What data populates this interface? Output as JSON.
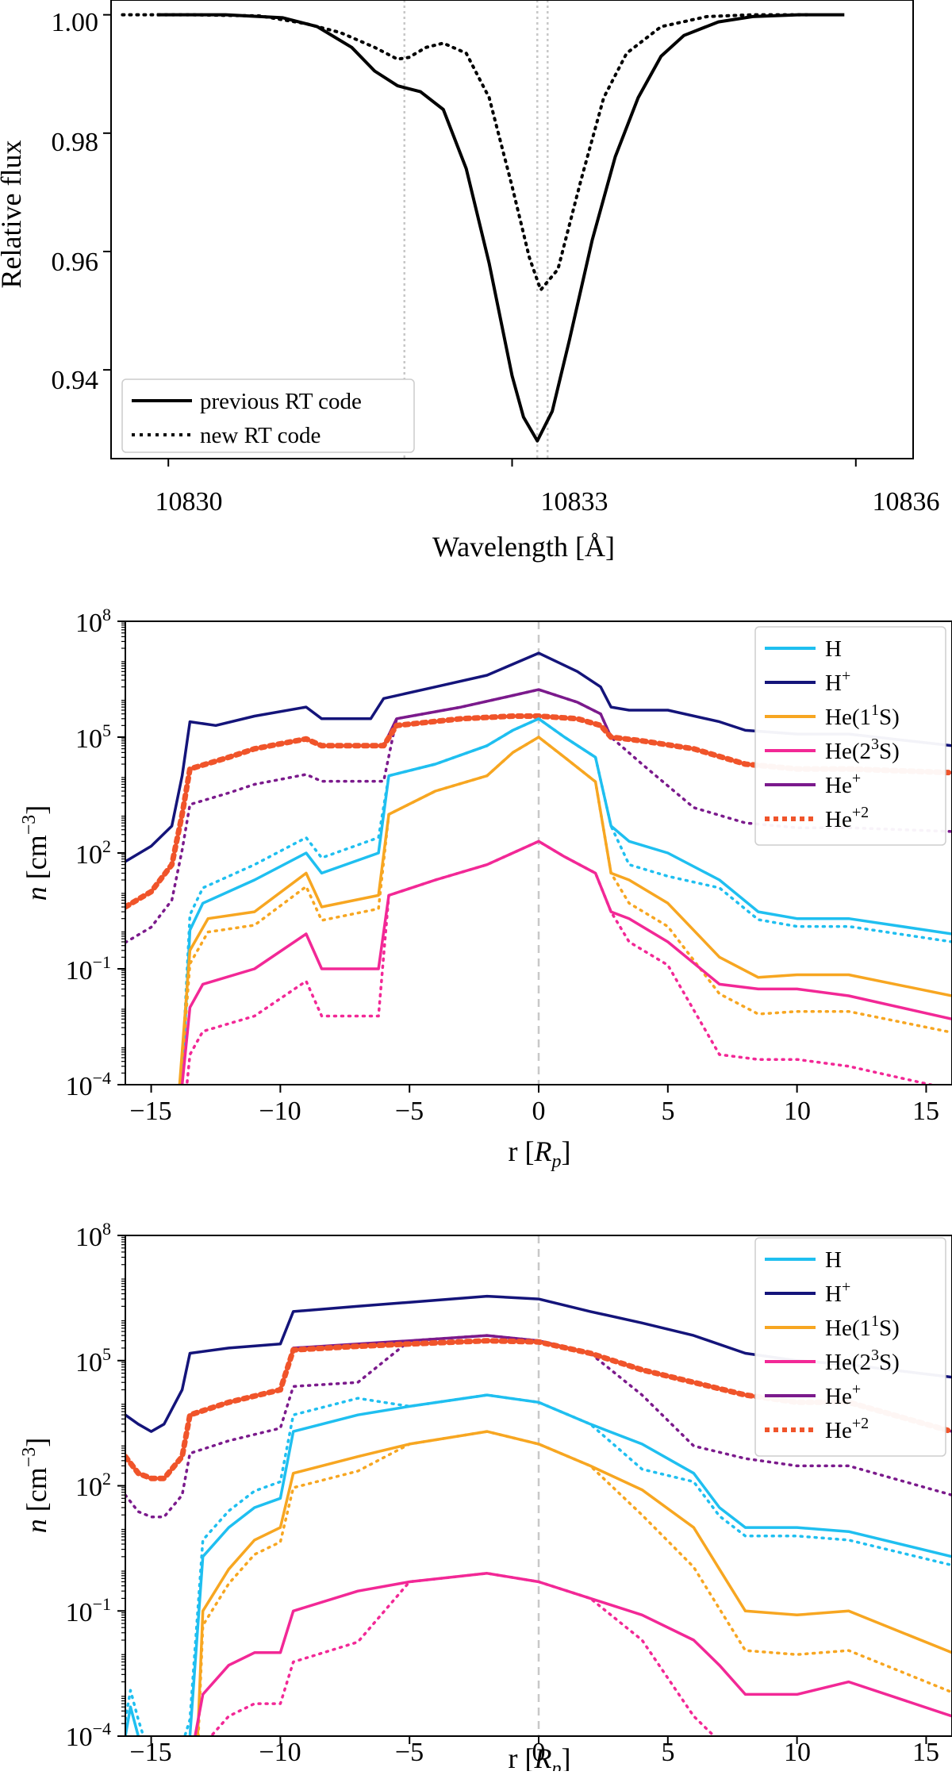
{
  "chart_data": [
    {
      "type": "line",
      "xlabel": "Wavelength [Å]",
      "ylabel": "Relative flux",
      "xlim": [
        10829.5,
        10836.5
      ],
      "ylim": [
        0.925,
        1.0025
      ],
      "xticks": [
        "10830",
        "10833",
        "10836"
      ],
      "yticks": [
        "0.94",
        "0.96",
        "0.98",
        "1.00"
      ],
      "grid": false,
      "legend": "bottom-left",
      "reference_lines_x": [
        10832.06,
        10833.22,
        10833.31
      ],
      "series": [
        {
          "name": "previous RT code",
          "style": "solid",
          "color": "#000000",
          "x": [
            10829.9,
            10830.5,
            10831.0,
            10831.3,
            10831.6,
            10831.8,
            10832.0,
            10832.2,
            10832.4,
            10832.6,
            10832.8,
            10833.0,
            10833.1,
            10833.22,
            10833.35,
            10833.5,
            10833.7,
            10833.9,
            10834.1,
            10834.3,
            10834.5,
            10834.8,
            10835.1,
            10835.5,
            10835.9
          ],
          "values": [
            1.0,
            1.0,
            0.9995,
            0.998,
            0.9945,
            0.9905,
            0.988,
            0.987,
            0.984,
            0.974,
            0.958,
            0.939,
            0.932,
            0.928,
            0.933,
            0.945,
            0.962,
            0.976,
            0.986,
            0.993,
            0.9965,
            0.9988,
            0.9997,
            1.0,
            1.0
          ]
        },
        {
          "name": "new RT code",
          "style": "dotted",
          "color": "#000000",
          "x": [
            10829.6,
            10830.2,
            10830.8,
            10831.2,
            10831.5,
            10831.8,
            10832.0,
            10832.1,
            10832.25,
            10832.4,
            10832.6,
            10832.8,
            10833.0,
            10833.15,
            10833.25,
            10833.4,
            10833.6,
            10833.8,
            10834.0,
            10834.3,
            10834.7,
            10835.1,
            10835.6
          ],
          "values": [
            1.0,
            1.0,
            0.9998,
            0.9985,
            0.997,
            0.9945,
            0.9925,
            0.9928,
            0.9945,
            0.9952,
            0.9935,
            0.986,
            0.971,
            0.959,
            0.9535,
            0.957,
            0.972,
            0.986,
            0.9935,
            0.998,
            0.9997,
            1.0,
            1.0
          ]
        }
      ]
    },
    {
      "type": "line",
      "xlabel": "r [Rp]",
      "ylabel": "n [cm⁻³]",
      "ylog": true,
      "xlim": [
        -16,
        16
      ],
      "ylim": [
        0.0001,
        100000000
      ],
      "xticks": [
        "−15",
        "−10",
        "−5",
        "0",
        "5",
        "10",
        "15"
      ],
      "yticks": [
        "10⁻⁴",
        "10⁻¹",
        "10²",
        "10⁵",
        "10⁸"
      ],
      "grid": false,
      "legend": "top-right",
      "reference_lines_x": [
        0
      ],
      "series": [
        {
          "name": "H+",
          "color": "#14147a",
          "style": "solid",
          "x": [
            -16,
            -15,
            -14.2,
            -13.8,
            -13.5,
            -12.5,
            -11,
            -9,
            -8.4,
            -6.5,
            -6,
            -4,
            -2,
            0,
            1.5,
            2.4,
            2.8,
            3.5,
            5,
            7,
            8,
            10,
            12,
            16
          ],
          "values": [
            60.0,
            150.0,
            500.0,
            10000.0,
            250000.0,
            200000.0,
            350000.0,
            600000.0,
            300000.0,
            300000.0,
            1000000.0,
            2000000.0,
            4000000.0,
            15000000.0,
            5000000.0,
            2000000.0,
            600000.0,
            500000.0,
            500000.0,
            250000.0,
            150000.0,
            120000.0,
            120000.0,
            60000.0
          ]
        },
        {
          "name": "He+",
          "color": "#7b1a8c",
          "style": "solid",
          "x": [
            -16,
            -15,
            -14.2,
            -13.8,
            -13.5,
            -12,
            -11,
            -9,
            -8.4,
            -6,
            -5.5,
            -3,
            -1,
            0,
            1.5,
            2.4,
            2.8,
            4,
            6,
            8,
            10,
            12,
            16
          ],
          "values": [
            4,
            10.0,
            50.0,
            1000.0,
            15000.0,
            30000.0,
            50000.0,
            90000.0,
            60000.0,
            60000.0,
            300000.0,
            600000.0,
            1200000.0,
            1700000.0,
            800000.0,
            400000.0,
            100000.0,
            80000.0,
            50000.0,
            20000.0,
            15000.0,
            15000.0,
            12000.0
          ]
        },
        {
          "name": "He+2",
          "color": "#f0542a",
          "style": "dotted",
          "x": [
            -16,
            -15,
            -14.2,
            -13.8,
            -13.5,
            -12,
            -11,
            -9,
            -8.4,
            -6,
            -5.5,
            -3,
            -1,
            0,
            1.5,
            2.4,
            2.8,
            4,
            6,
            8,
            10,
            12,
            16
          ],
          "values": [
            4,
            10.0,
            50.0,
            1000.0,
            15000.0,
            30000.0,
            50000.0,
            90000.0,
            60000.0,
            60000.0,
            200000.0,
            300000.0,
            350000.0,
            350000.0,
            300000.0,
            200000.0,
            100000.0,
            80000.0,
            50000.0,
            20000.0,
            15000.0,
            15000.0,
            12000.0
          ]
        },
        {
          "name": "H",
          "color": "#1fbff0",
          "style": "solid",
          "x": [
            -13.8,
            -13.5,
            -13,
            -11,
            -9,
            -8.4,
            -6.2,
            -5.8,
            -4,
            -2,
            -1,
            0,
            1,
            2.2,
            2.8,
            3.5,
            5,
            7,
            8.5,
            10,
            12,
            16
          ],
          "values": [
            0.0001,
            1,
            5,
            20.0,
            100.0,
            30.0,
            100.0,
            10000.0,
            20000.0,
            60000.0,
            150000.0,
            300000.0,
            100000.0,
            30000.0,
            500.0,
            200.0,
            100.0,
            20.0,
            3,
            2,
            2,
            0.8
          ]
        },
        {
          "name": "He(1¹S)",
          "color": "#f7a621",
          "style": "solid",
          "x": [
            -13.9,
            -13.5,
            -12.8,
            -11,
            -9,
            -8.4,
            -6.2,
            -5.8,
            -4,
            -2,
            -1,
            0,
            1,
            2.2,
            2.8,
            3.5,
            5,
            7,
            8.5,
            10,
            12,
            16
          ],
          "values": [
            0.0001,
            0.3,
            2,
            3,
            30.0,
            4,
            8,
            1000.0,
            4000.0,
            10000.0,
            40000.0,
            100000.0,
            30000.0,
            7000.0,
            30.0,
            20.0,
            5,
            0.2,
            0.06,
            0.07,
            0.07,
            0.02
          ]
        },
        {
          "name": "He(2³S)",
          "color": "#f22896",
          "style": "solid",
          "x": [
            -13.8,
            -13.5,
            -13,
            -11,
            -9,
            -8.4,
            -6.2,
            -5.8,
            -4,
            -2,
            -1,
            0,
            1,
            2.2,
            2.8,
            3.5,
            5,
            7,
            8.5,
            10,
            12,
            16
          ],
          "values": [
            0.0001,
            0.01,
            0.04,
            0.1,
            0.8,
            0.1,
            0.1,
            8,
            20.0,
            50.0,
            100.0,
            200.0,
            80.0,
            30.0,
            3,
            2,
            0.5,
            0.04,
            0.03,
            0.03,
            0.02,
            0.005
          ]
        }
      ]
    },
    {
      "type": "line",
      "xlabel": "r [Rp]",
      "ylabel": "n [cm⁻³]",
      "ylog": true,
      "xlim": [
        -16,
        16
      ],
      "ylim": [
        0.0001,
        100000000
      ],
      "xticks": [
        "−15",
        "−10",
        "−5",
        "0",
        "5",
        "10",
        "15"
      ],
      "yticks": [
        "10⁻⁴",
        "10⁻¹",
        "10²",
        "10⁵",
        "10⁸"
      ],
      "grid": false,
      "legend": "top-right",
      "reference_lines_x": [
        0
      ],
      "series": [
        {
          "name": "H+",
          "color": "#14147a",
          "style": "solid",
          "x": [
            -16,
            -15.5,
            -15,
            -14.5,
            -13.8,
            -13.5,
            -12,
            -10,
            -9.5,
            -7,
            -5,
            -2,
            0,
            2,
            4,
            6,
            8,
            10,
            12,
            16
          ],
          "values": [
            5000.0,
            3000.0,
            2000.0,
            3000.0,
            20000.0,
            150000.0,
            200000.0,
            250000.0,
            1500000.0,
            2000000.0,
            2500000.0,
            3500000.0,
            3000000.0,
            1500000.0,
            800000.0,
            400000.0,
            150000.0,
            100000.0,
            80000.0,
            40000.0
          ]
        },
        {
          "name": "He+",
          "color": "#7b1a8c",
          "style": "solid",
          "x": [
            -16,
            -15.5,
            -15,
            -14.5,
            -13.8,
            -13.5,
            -12,
            -10,
            -9.5,
            -7,
            -5,
            -2,
            0,
            2,
            4,
            6,
            8,
            10,
            12,
            16
          ],
          "values": [
            500.0,
            200.0,
            150.0,
            150.0,
            500.0,
            5000.0,
            10000.0,
            20000.0,
            200000.0,
            250000.0,
            300000.0,
            400000.0,
            300000.0,
            150000.0,
            60000.0,
            30000.0,
            15000.0,
            10000.0,
            10000.0,
            2000.0
          ]
        },
        {
          "name": "He+2",
          "color": "#f0542a",
          "style": "dotted",
          "x": [
            -16,
            -15.5,
            -15,
            -14.5,
            -13.8,
            -13.5,
            -12,
            -10,
            -9.5,
            -7,
            -5,
            -2,
            0,
            2,
            4,
            6,
            8,
            10,
            12,
            16
          ],
          "values": [
            500.0,
            200.0,
            150.0,
            150.0,
            500.0,
            5000.0,
            10000.0,
            20000.0,
            180000.0,
            220000.0,
            250000.0,
            300000.0,
            280000.0,
            150000.0,
            60000.0,
            30000.0,
            15000.0,
            10000.0,
            10000.0,
            2000.0
          ]
        },
        {
          "name": "H",
          "color": "#1fbff0",
          "style": "solid",
          "x": [
            -16,
            -15.8,
            -15.5,
            -15,
            -14,
            -13.5,
            -13,
            -12,
            -11,
            -10,
            -9.5,
            -7,
            -5,
            -2,
            0,
            2,
            4,
            6,
            7,
            8,
            10,
            12,
            16
          ],
          "values": [
            0.0001,
            0.0005,
            0.0001,
            1e-05,
            1e-05,
            0.0001,
            2,
            10.0,
            30.0,
            50.0,
            2000.0,
            5000.0,
            8000.0,
            15000.0,
            10000.0,
            3000.0,
            1000.0,
            200.0,
            30.0,
            10.0,
            10.0,
            8,
            2
          ]
        },
        {
          "name": "He(1¹S)",
          "color": "#f7a621",
          "style": "solid",
          "x": [
            -13.2,
            -13,
            -12,
            -11,
            -10,
            -9.5,
            -7,
            -5,
            -2,
            0,
            2,
            4,
            6,
            7,
            8,
            10,
            12,
            16
          ],
          "values": [
            0.0001,
            0.1,
            1,
            5,
            10.0,
            200.0,
            500.0,
            1000.0,
            2000.0,
            1000.0,
            300.0,
            80.0,
            10.0,
            1,
            0.1,
            0.08,
            0.1,
            0.01
          ]
        },
        {
          "name": "He(2³S)",
          "color": "#f22896",
          "style": "solid",
          "x": [
            -13.3,
            -13,
            -12,
            -11,
            -10,
            -9.5,
            -7,
            -5,
            -2,
            0,
            2,
            4,
            6,
            7,
            8,
            10,
            12,
            16
          ],
          "values": [
            0.0001,
            0.001,
            0.005,
            0.01,
            0.01,
            0.1,
            0.3,
            0.5,
            0.8,
            0.5,
            0.2,
            0.08,
            0.02,
            0.005,
            0.001,
            0.001,
            0.002,
            0.0003
          ]
        }
      ]
    }
  ]
}
